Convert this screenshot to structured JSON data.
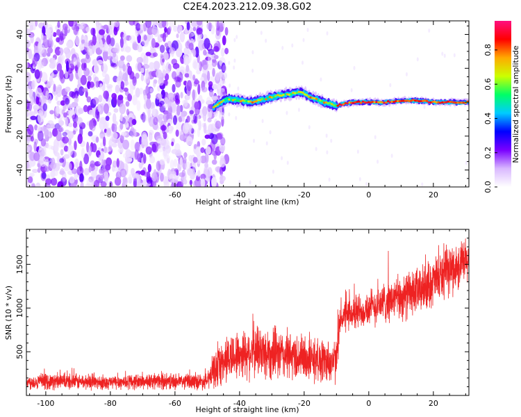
{
  "title": "C2E4.2023.212.09.38.G02",
  "chart_data": [
    {
      "type": "heatmap",
      "xlabel": "Height of straight line (km)",
      "ylabel": "Frequency (Hz)",
      "xlim": [
        -106,
        31
      ],
      "ylim": [
        -50,
        48
      ],
      "xticks": [
        -100,
        -80,
        -60,
        -40,
        -20,
        0,
        20
      ],
      "yticks": [
        -40,
        -20,
        0,
        20,
        40
      ],
      "colorbar": {
        "label": "Normalized spectral amplitude",
        "lim": [
          0.0,
          0.97
        ],
        "ticks": [
          "0.0",
          "0.2",
          "0.4",
          "0.6",
          "0.8"
        ],
        "tick_values": [
          0.0,
          0.2,
          0.4,
          0.6,
          0.8
        ],
        "colors": [
          "#ffffff",
          "#d9b8ff",
          "#7a00ff",
          "#0000ff",
          "#00ccff",
          "#00ff66",
          "#ccff00",
          "#ffaa00",
          "#ff0000",
          "#ff1080"
        ]
      },
      "noise_region": {
        "x": [
          -106,
          -46
        ],
        "y": [
          -50,
          48
        ]
      },
      "ridge": [
        {
          "x": -48,
          "y": -3
        },
        {
          "x": -44,
          "y": 2
        },
        {
          "x": -40,
          "y": 1
        },
        {
          "x": -36,
          "y": 0
        },
        {
          "x": -32,
          "y": 2
        },
        {
          "x": -28,
          "y": 4
        },
        {
          "x": -24,
          "y": 5
        },
        {
          "x": -21,
          "y": 6
        },
        {
          "x": -18,
          "y": 3
        },
        {
          "x": -14,
          "y": 0
        },
        {
          "x": -10,
          "y": -2
        },
        {
          "x": -5,
          "y": 0
        },
        {
          "x": 0,
          "y": 0
        },
        {
          "x": 5,
          "y": 0
        },
        {
          "x": 10,
          "y": 1
        },
        {
          "x": 15,
          "y": 1
        },
        {
          "x": 20,
          "y": 0
        },
        {
          "x": 25,
          "y": 0
        },
        {
          "x": 31,
          "y": 0
        }
      ]
    },
    {
      "type": "line",
      "xlabel": "Height of straight line (km)",
      "ylabel": "SNR (10 * v/v)",
      "xlim": [
        -106,
        31
      ],
      "ylim": [
        0,
        1900
      ],
      "xticks": [
        -100,
        -80,
        -60,
        -40,
        -20,
        0,
        20
      ],
      "yticks": [
        500,
        1000,
        1500
      ],
      "series": [
        {
          "color": "#ee2222",
          "x": [
            -106,
            -100,
            -90,
            -80,
            -70,
            -60,
            -50,
            -48,
            -46,
            -44,
            -42,
            -40,
            -38,
            -36,
            -34,
            -32,
            -30,
            -28,
            -26,
            -24,
            -22,
            -20,
            -18,
            -16,
            -14,
            -12,
            -10,
            -9,
            -8,
            -6,
            -4,
            -2,
            0,
            2,
            4,
            6,
            8,
            10,
            12,
            14,
            16,
            18,
            20,
            22,
            24,
            26,
            28,
            30,
            31
          ],
          "y": [
            150,
            160,
            155,
            150,
            160,
            160,
            160,
            280,
            350,
            420,
            450,
            470,
            490,
            500,
            510,
            490,
            480,
            470,
            460,
            450,
            440,
            430,
            420,
            410,
            400,
            395,
            390,
            850,
            900,
            920,
            950,
            980,
            1000,
            1020,
            1050,
            1080,
            1100,
            1120,
            1150,
            1180,
            1200,
            1250,
            1300,
            1350,
            1400,
            1450,
            1480,
            1520,
            1560
          ],
          "noise_amp": [
            100,
            110,
            110,
            100,
            110,
            110,
            110,
            250,
            300,
            330,
            340,
            350,
            360,
            370,
            380,
            370,
            360,
            350,
            345,
            340,
            335,
            330,
            320,
            315,
            310,
            305,
            300,
            220,
            230,
            240,
            250,
            260,
            260,
            270,
            280,
            290,
            300,
            310,
            320,
            320,
            320,
            330,
            330,
            340,
            340,
            340,
            340,
            340,
            340
          ]
        }
      ]
    }
  ]
}
